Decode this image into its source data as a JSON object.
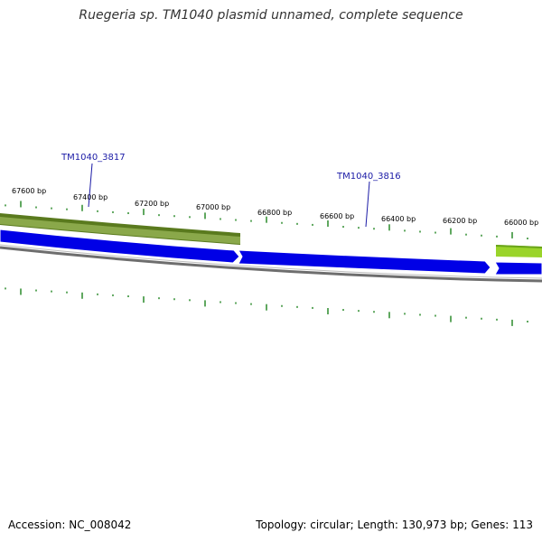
{
  "title": "Ruegeria sp. TM1040 plasmid unnamed, complete sequence",
  "footer": {
    "accession": "Accession: NC_008042",
    "summary": "Topology: circular; Length: 130,973 bp; Genes: 113"
  },
  "colors": {
    "gene_forward_dark": "#5a7a1e",
    "gene_forward_light": "#a8d44a",
    "gene_reverse": "#0000e6",
    "backbone": "#7a7a7a",
    "tick": "#2a8a2a",
    "gene_label": "#1a1aa6"
  },
  "scale": {
    "tick_labels": [
      "67600 bp",
      "67400 bp",
      "67200 bp",
      "67000 bp",
      "66800 bp",
      "66600 bp",
      "66400 bp",
      "66200 bp",
      "66000 bp"
    ]
  },
  "genes": [
    {
      "locus": "TM1040_3817",
      "strand": "forward"
    },
    {
      "locus": "TM1040_3816",
      "strand": "reverse"
    }
  ]
}
